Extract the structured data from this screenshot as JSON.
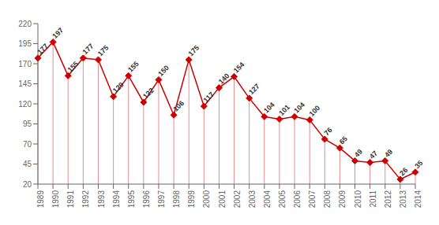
{
  "chart_data": {
    "type": "line",
    "categories": [
      "1989",
      "1990",
      "1991",
      "1992",
      "1993",
      "1994",
      "1995",
      "1996",
      "1997",
      "1998",
      "1999",
      "2000",
      "2001",
      "2002",
      "2003",
      "2004",
      "2005",
      "2006",
      "2007",
      "2008",
      "2009",
      "2010",
      "2011",
      "2012",
      "2013",
      "2014"
    ],
    "values": [
      177,
      197,
      155,
      177,
      175,
      129,
      155,
      122,
      150,
      106,
      175,
      117,
      140,
      154,
      127,
      104,
      101,
      104,
      100,
      76,
      65,
      49,
      47,
      49,
      26,
      35
    ],
    "color": "#cc0000",
    "marker": "diamond",
    "ylim": [
      20,
      220
    ],
    "yticks": [
      20,
      45,
      70,
      95,
      120,
      145,
      170,
      195,
      220
    ],
    "grid": false,
    "data_labels": true
  }
}
